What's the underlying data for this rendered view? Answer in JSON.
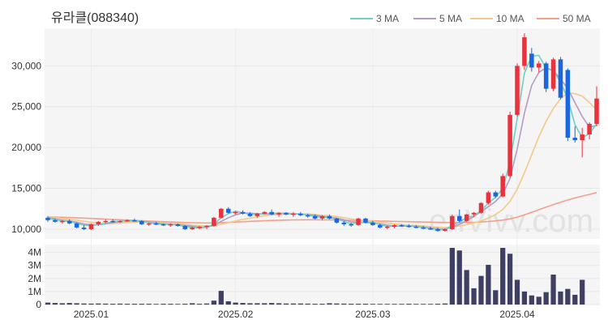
{
  "chart_data": {
    "type": "candlestick",
    "title": "유라클(088340)",
    "watermark": "enVivv.com",
    "x_ticks": [
      "2025.01",
      "2025.02",
      "2025.03",
      "2025.04"
    ],
    "price_axis": {
      "ticks": [
        "10,000",
        "15,000",
        "20,000",
        "25,000",
        "30,000"
      ],
      "tick_values": [
        10000,
        15000,
        20000,
        25000,
        30000
      ],
      "range": [
        8800,
        34600
      ]
    },
    "volume_axis": {
      "ticks": [
        "0",
        "1M",
        "2M",
        "3M",
        "4M"
      ],
      "tick_values": [
        0,
        1,
        2,
        3,
        4
      ],
      "unit": "M",
      "range": [
        0,
        4.6
      ]
    },
    "up_color": "#e8323c",
    "down_color": "#1a66e0",
    "volume_color": "#3d3f63",
    "legend": [
      {
        "name": "3 MA",
        "color": "#6fcfcb"
      },
      {
        "name": "5 MA",
        "color": "#b39cc4"
      },
      {
        "name": "10 MA",
        "color": "#f2c98a"
      },
      {
        "name": "50 MA",
        "color": "#f2a08e"
      }
    ],
    "candles": [
      [
        11400,
        11600,
        10900,
        11100
      ],
      [
        11100,
        11300,
        10800,
        10900
      ],
      [
        10900,
        11100,
        10700,
        11000
      ],
      [
        11000,
        11200,
        10600,
        10700
      ],
      [
        10700,
        10800,
        10100,
        10200
      ],
      [
        10200,
        10500,
        9900,
        10000
      ],
      [
        10000,
        10700,
        9900,
        10600
      ],
      [
        10600,
        11000,
        10400,
        10900
      ],
      [
        10900,
        11200,
        10700,
        11000
      ],
      [
        11000,
        11200,
        10800,
        10900
      ],
      [
        10900,
        11100,
        10800,
        11000
      ],
      [
        11000,
        11200,
        10900,
        11100
      ],
      [
        11100,
        11300,
        10900,
        11000
      ],
      [
        11000,
        11100,
        10500,
        10600
      ],
      [
        10600,
        10800,
        10400,
        10700
      ],
      [
        10700,
        10900,
        10500,
        10600
      ],
      [
        10600,
        10700,
        10400,
        10500
      ],
      [
        10500,
        10700,
        10300,
        10600
      ],
      [
        10600,
        10700,
        10300,
        10400
      ],
      [
        10400,
        10500,
        9900,
        10000
      ],
      [
        10000,
        10300,
        9900,
        10200
      ],
      [
        10200,
        10400,
        10000,
        10300
      ],
      [
        10300,
        10500,
        10000,
        10400
      ],
      [
        10400,
        11500,
        10300,
        11400
      ],
      [
        11400,
        12600,
        11300,
        12500
      ],
      [
        12500,
        12700,
        11900,
        12000
      ],
      [
        12000,
        12200,
        11800,
        12100
      ],
      [
        12100,
        12300,
        11800,
        11900
      ],
      [
        11900,
        12100,
        11500,
        11600
      ],
      [
        11600,
        12000,
        11400,
        11900
      ],
      [
        11900,
        12200,
        11800,
        12100
      ],
      [
        12100,
        12400,
        11700,
        11800
      ],
      [
        11800,
        12100,
        11500,
        12000
      ],
      [
        12000,
        12100,
        11700,
        11800
      ],
      [
        11800,
        12100,
        11500,
        11900
      ],
      [
        11900,
        12100,
        11600,
        11700
      ],
      [
        11700,
        11900,
        11400,
        11600
      ],
      [
        11600,
        11800,
        11200,
        11300
      ],
      [
        11300,
        11700,
        11100,
        11600
      ],
      [
        11600,
        11800,
        11200,
        11300
      ],
      [
        11300,
        11400,
        10700,
        10800
      ],
      [
        10800,
        11000,
        10400,
        10600
      ],
      [
        10600,
        10800,
        10300,
        10500
      ],
      [
        10500,
        11400,
        10400,
        11300
      ],
      [
        11300,
        11400,
        10700,
        10800
      ],
      [
        10800,
        11000,
        10400,
        10500
      ],
      [
        10500,
        10700,
        10100,
        10200
      ],
      [
        10200,
        10400,
        10000,
        10300
      ],
      [
        10300,
        10600,
        10100,
        10500
      ],
      [
        10500,
        10600,
        10300,
        10400
      ],
      [
        10400,
        10600,
        10200,
        10300
      ],
      [
        10300,
        10500,
        10100,
        10200
      ],
      [
        10200,
        10400,
        10000,
        10100
      ],
      [
        10100,
        10300,
        9900,
        10000
      ],
      [
        10000,
        10200,
        9700,
        9800
      ],
      [
        9800,
        10100,
        9700,
        10000
      ],
      [
        10000,
        11800,
        9900,
        11600
      ],
      [
        11600,
        12400,
        10800,
        11000
      ],
      [
        11000,
        11900,
        10900,
        11800
      ],
      [
        11800,
        12100,
        11500,
        12000
      ],
      [
        12000,
        13300,
        11900,
        13200
      ],
      [
        13200,
        14700,
        13000,
        14500
      ],
      [
        14500,
        14700,
        13800,
        14000
      ],
      [
        14000,
        16800,
        13900,
        16500
      ],
      [
        16500,
        24400,
        16300,
        24000
      ],
      [
        24000,
        30300,
        23800,
        30000
      ],
      [
        30000,
        34000,
        29500,
        33500
      ],
      [
        31500,
        32200,
        29300,
        29800
      ],
      [
        29800,
        30600,
        29200,
        30300
      ],
      [
        30300,
        30500,
        26800,
        27200
      ],
      [
        27200,
        31000,
        26900,
        30800
      ],
      [
        30800,
        31100,
        25900,
        26100
      ],
      [
        29500,
        29700,
        20800,
        21200
      ],
      [
        21200,
        22600,
        20600,
        20900
      ],
      [
        20900,
        22400,
        18800,
        21600
      ],
      [
        21600,
        23100,
        21000,
        22900
      ],
      [
        22900,
        27500,
        22600,
        26000
      ]
    ],
    "ma3": [
      11300,
      11150,
      11000,
      10950,
      10700,
      10500,
      10450,
      10550,
      10700,
      10950,
      10950,
      11000,
      11050,
      10950,
      10800,
      10650,
      10600,
      10600,
      10500,
      10350,
      10200,
      10150,
      10250,
      10600,
      11400,
      11900,
      12200,
      12000,
      11850,
      11800,
      11900,
      11950,
      11950,
      11900,
      11900,
      11850,
      11750,
      11550,
      11450,
      11400,
      11250,
      10950,
      10650,
      10800,
      10850,
      10850,
      10550,
      10350,
      10350,
      10400,
      10400,
      10300,
      10200,
      10100,
      9950,
      9950,
      10450,
      10850,
      11450,
      11600,
      12300,
      13200,
      13900,
      15000,
      18200,
      23500,
      29100,
      31200,
      31300,
      29700,
      29400,
      28000,
      26000,
      22800,
      21200,
      21700,
      22900
    ],
    "ma5": [
      11400,
      11250,
      11100,
      11000,
      10850,
      10650,
      10550,
      10550,
      10650,
      10800,
      10950,
      11000,
      11000,
      10950,
      10850,
      10750,
      10650,
      10600,
      10550,
      10450,
      10350,
      10250,
      10250,
      10450,
      10950,
      11400,
      11750,
      12000,
      11950,
      11900,
      11850,
      11900,
      11950,
      11950,
      11900,
      11850,
      11800,
      11700,
      11550,
      11450,
      11350,
      11150,
      10900,
      10850,
      10800,
      10750,
      10650,
      10500,
      10400,
      10350,
      10400,
      10350,
      10250,
      10150,
      10050,
      10000,
      10250,
      10600,
      11050,
      11550,
      12150,
      12750,
      13400,
      14300,
      16200,
      19800,
      24200,
      27600,
      29200,
      29800,
      29400,
      28400,
      27200,
      25500,
      23800,
      22500,
      22700
    ],
    "ma10": [
      11500,
      11400,
      11300,
      11200,
      11100,
      10950,
      10850,
      10750,
      10700,
      10700,
      10750,
      10800,
      10850,
      10850,
      10850,
      10800,
      10750,
      10700,
      10650,
      10600,
      10500,
      10450,
      10400,
      10450,
      10600,
      10800,
      11000,
      11200,
      11350,
      11500,
      11650,
      11750,
      11800,
      11850,
      11850,
      11850,
      11850,
      11800,
      11700,
      11650,
      11550,
      11400,
      11250,
      11150,
      11050,
      10950,
      10850,
      10750,
      10650,
      10550,
      10500,
      10450,
      10400,
      10300,
      10250,
      10200,
      10250,
      10400,
      10550,
      10750,
      11000,
      11350,
      11800,
      12400,
      13400,
      14900,
      16900,
      19100,
      21300,
      23200,
      24800,
      26000,
      26700,
      26600,
      26300,
      25500,
      24600
    ],
    "ma50": [
      11500,
      11480,
      11450,
      11420,
      11390,
      11350,
      11310,
      11270,
      11230,
      11190,
      11150,
      11110,
      11070,
      11030,
      10990,
      10950,
      10910,
      10870,
      10840,
      10810,
      10780,
      10760,
      10750,
      10760,
      10790,
      10830,
      10870,
      10910,
      10950,
      10990,
      11030,
      11060,
      11090,
      11110,
      11130,
      11140,
      11150,
      11150,
      11140,
      11130,
      11110,
      11090,
      11070,
      11050,
      11030,
      11010,
      10990,
      10970,
      10950,
      10930,
      10910,
      10890,
      10870,
      10850,
      10830,
      10810,
      10800,
      10800,
      10810,
      10830,
      10870,
      10930,
      11010,
      11110,
      11260,
      11470,
      11750,
      12060,
      12380,
      12700,
      13010,
      13300,
      13570,
      13820,
      14050,
      14260,
      14480
    ],
    "volume": [
      0.15,
      0.12,
      0.1,
      0.12,
      0.1,
      0.08,
      0.07,
      0.08,
      0.07,
      0.06,
      0.07,
      0.06,
      0.06,
      0.06,
      0.06,
      0.05,
      0.06,
      0.06,
      0.05,
      0.06,
      0.1,
      0.06,
      0.08,
      0.3,
      1.05,
      0.25,
      0.15,
      0.12,
      0.1,
      0.1,
      0.1,
      0.12,
      0.1,
      0.08,
      0.08,
      0.08,
      0.07,
      0.06,
      0.06,
      0.1,
      0.08,
      0.07,
      0.06,
      0.06,
      0.06,
      0.05,
      0.05,
      0.05,
      0.05,
      0.05,
      0.06,
      0.05,
      0.05,
      0.05,
      0.06,
      0.08,
      4.35,
      4.15,
      2.65,
      1.25,
      2.2,
      3.05,
      1.1,
      4.35,
      3.9,
      1.9,
      1.0,
      0.7,
      0.6,
      0.95,
      2.3,
      1.0,
      1.2,
      0.75,
      1.9,
      0.0,
      0.0
    ]
  }
}
